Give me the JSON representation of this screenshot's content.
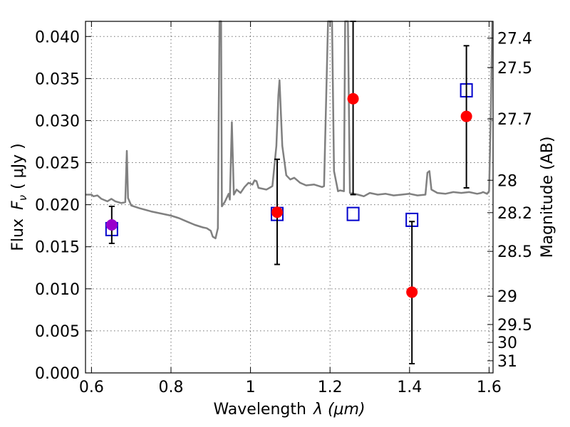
{
  "chart_data": {
    "type": "scatter",
    "title": "",
    "xlabel_text": "Wavelength",
    "xlabel_math": "λ (μm)",
    "ylabel_text": "Flux",
    "ylabel_math": "F",
    "ylabel_sub": "ν",
    "ylabel_unit": "( μJy )",
    "y2label": "Magnitude (AB)",
    "xlim": [
      0.585,
      1.61
    ],
    "ylim": [
      0.0,
      0.0418
    ],
    "grid": true,
    "x_ticks": [
      {
        "v": 0.6,
        "label": "0.6"
      },
      {
        "v": 0.8,
        "label": "0.8"
      },
      {
        "v": 1.0,
        "label": "1"
      },
      {
        "v": 1.2,
        "label": "1.2"
      },
      {
        "v": 1.4,
        "label": "1.4"
      },
      {
        "v": 1.6,
        "label": "1.6"
      }
    ],
    "y_ticks": [
      {
        "v": 0.0,
        "label": "0.000"
      },
      {
        "v": 0.005,
        "label": "0.005"
      },
      {
        "v": 0.01,
        "label": "0.010"
      },
      {
        "v": 0.015,
        "label": "0.015"
      },
      {
        "v": 0.02,
        "label": "0.020"
      },
      {
        "v": 0.025,
        "label": "0.025"
      },
      {
        "v": 0.03,
        "label": "0.030"
      },
      {
        "v": 0.035,
        "label": "0.035"
      },
      {
        "v": 0.04,
        "label": "0.040"
      }
    ],
    "y2_ticks": [
      {
        "mag": 27.4,
        "label": "27.4"
      },
      {
        "mag": 27.5,
        "label": "27.5"
      },
      {
        "mag": 27.7,
        "label": "27.7"
      },
      {
        "mag": 28.0,
        "label": "28"
      },
      {
        "mag": 28.2,
        "label": "28.2"
      },
      {
        "mag": 28.5,
        "label": "28.5"
      },
      {
        "mag": 29.0,
        "label": "29"
      },
      {
        "mag": 29.5,
        "label": "29.5"
      },
      {
        "mag": 30.0,
        "label": "30"
      },
      {
        "mag": 31.0,
        "label": "31"
      }
    ],
    "spectrum": {
      "color": "#808080",
      "points": [
        [
          0.585,
          0.0212
        ],
        [
          0.6,
          0.0212
        ],
        [
          0.605,
          0.021
        ],
        [
          0.615,
          0.0211
        ],
        [
          0.625,
          0.0207
        ],
        [
          0.64,
          0.0204
        ],
        [
          0.65,
          0.0207
        ],
        [
          0.66,
          0.0204
        ],
        [
          0.675,
          0.0202
        ],
        [
          0.685,
          0.0203
        ],
        [
          0.689,
          0.0264
        ],
        [
          0.692,
          0.0208
        ],
        [
          0.7,
          0.0199
        ],
        [
          0.72,
          0.0196
        ],
        [
          0.75,
          0.0192
        ],
        [
          0.78,
          0.0189
        ],
        [
          0.8,
          0.0187
        ],
        [
          0.82,
          0.0184
        ],
        [
          0.84,
          0.018
        ],
        [
          0.86,
          0.0176
        ],
        [
          0.88,
          0.0173
        ],
        [
          0.89,
          0.0172
        ],
        [
          0.9,
          0.0169
        ],
        [
          0.905,
          0.0162
        ],
        [
          0.912,
          0.016
        ],
        [
          0.918,
          0.0172
        ],
        [
          0.92,
          0.03
        ],
        [
          0.922,
          0.0418
        ],
        [
          0.926,
          0.0418
        ],
        [
          0.928,
          0.0198
        ],
        [
          0.935,
          0.0203
        ],
        [
          0.945,
          0.0213
        ],
        [
          0.948,
          0.0206
        ],
        [
          0.953,
          0.0298
        ],
        [
          0.958,
          0.0212
        ],
        [
          0.965,
          0.0218
        ],
        [
          0.975,
          0.0214
        ],
        [
          0.985,
          0.0221
        ],
        [
          0.995,
          0.0226
        ],
        [
          1.005,
          0.0224
        ],
        [
          1.01,
          0.0229
        ],
        [
          1.015,
          0.0228
        ],
        [
          1.02,
          0.022
        ],
        [
          1.04,
          0.0218
        ],
        [
          1.055,
          0.0222
        ],
        [
          1.065,
          0.027
        ],
        [
          1.07,
          0.033
        ],
        [
          1.073,
          0.0348
        ],
        [
          1.08,
          0.027
        ],
        [
          1.09,
          0.0235
        ],
        [
          1.1,
          0.023
        ],
        [
          1.11,
          0.0232
        ],
        [
          1.125,
          0.0226
        ],
        [
          1.14,
          0.0223
        ],
        [
          1.16,
          0.0224
        ],
        [
          1.18,
          0.0221
        ],
        [
          1.185,
          0.0222
        ],
        [
          1.19,
          0.032
        ],
        [
          1.195,
          0.0418
        ],
        [
          1.205,
          0.0418
        ],
        [
          1.21,
          0.024
        ],
        [
          1.22,
          0.0216
        ],
        [
          1.225,
          0.0217
        ],
        [
          1.235,
          0.0216
        ],
        [
          1.238,
          0.0418
        ],
        [
          1.245,
          0.0418
        ],
        [
          1.25,
          0.0214
        ],
        [
          1.27,
          0.0212
        ],
        [
          1.285,
          0.021
        ],
        [
          1.3,
          0.0214
        ],
        [
          1.32,
          0.0212
        ],
        [
          1.34,
          0.0213
        ],
        [
          1.36,
          0.0211
        ],
        [
          1.38,
          0.0212
        ],
        [
          1.4,
          0.0213
        ],
        [
          1.42,
          0.0211
        ],
        [
          1.44,
          0.0212
        ],
        [
          1.445,
          0.0238
        ],
        [
          1.45,
          0.024
        ],
        [
          1.455,
          0.0218
        ],
        [
          1.47,
          0.0214
        ],
        [
          1.49,
          0.0213
        ],
        [
          1.51,
          0.0215
        ],
        [
          1.53,
          0.0214
        ],
        [
          1.55,
          0.0215
        ],
        [
          1.57,
          0.0213
        ],
        [
          1.58,
          0.0214
        ],
        [
          1.585,
          0.0215
        ],
        [
          1.595,
          0.0213
        ],
        [
          1.6,
          0.0216
        ],
        [
          1.604,
          0.03
        ],
        [
          1.608,
          0.0418
        ]
      ]
    },
    "model_points": {
      "color": "#0000cc",
      "points": [
        {
          "x": 0.651,
          "y": 0.0171
        },
        {
          "x": 1.067,
          "y": 0.0189
        },
        {
          "x": 1.258,
          "y": 0.0189
        },
        {
          "x": 1.406,
          "y": 0.0182
        },
        {
          "x": 1.543,
          "y": 0.0336
        }
      ]
    },
    "observed": {
      "color": "#ff0000",
      "points": [
        {
          "x": 0.651,
          "y": 0.0176,
          "err_low": 0.0154,
          "err_high": 0.0198,
          "color": "#9900cc"
        },
        {
          "x": 1.067,
          "y": 0.0191,
          "err_low": 0.0129,
          "err_high": 0.0254
        },
        {
          "x": 1.258,
          "y": 0.0326,
          "err_low": 0.0212,
          "err_high": 0.0418
        },
        {
          "x": 1.406,
          "y": 0.0096,
          "err_low": 0.0011,
          "err_high": 0.018
        },
        {
          "x": 1.543,
          "y": 0.0305,
          "err_low": 0.022,
          "err_high": 0.0389
        }
      ]
    }
  }
}
